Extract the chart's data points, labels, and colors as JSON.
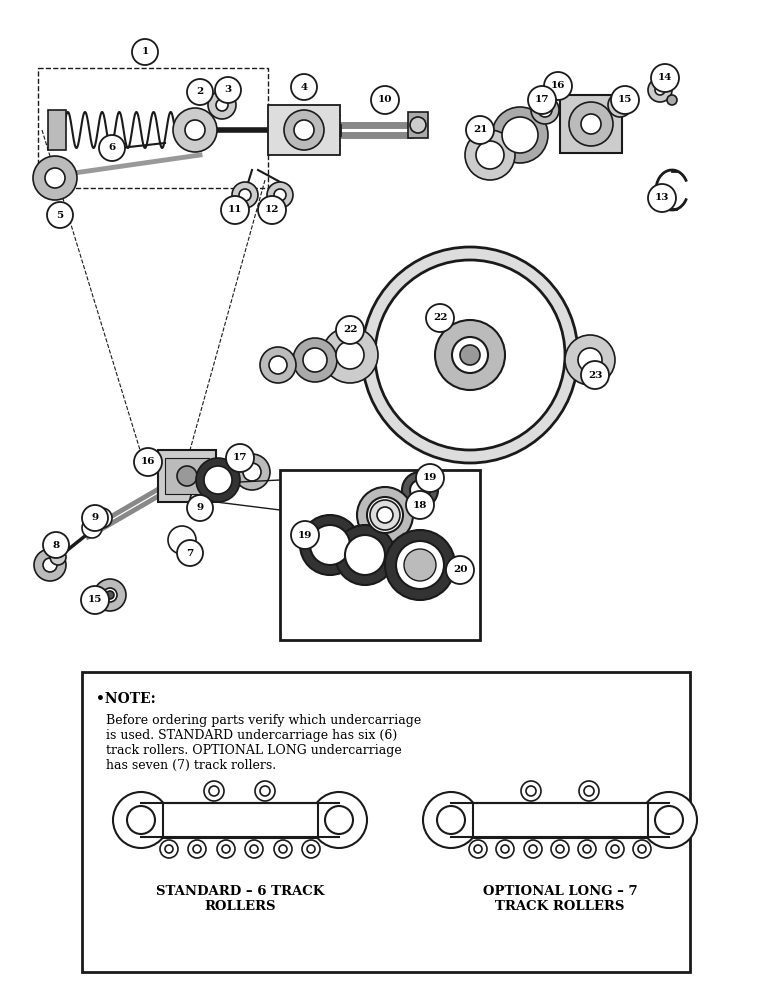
{
  "bg_color": "#ffffff",
  "line_color": "#1a1a1a",
  "fig_w": 7.72,
  "fig_h": 10.0,
  "dpi": 100,
  "note_title": "•NOTE:",
  "note_body": "    Before ordering parts verify which undercarriage\n    is used. STANDARD undercarriage has six (6)\n    track rollers. OPTIONAL LONG undercarriage\n    has seven (7) track rollers.",
  "label_standard": "STANDARD – 6 TRACK\nROLLERS",
  "label_optional": "OPTIONAL LONG – 7\nTRACK ROLLERS"
}
